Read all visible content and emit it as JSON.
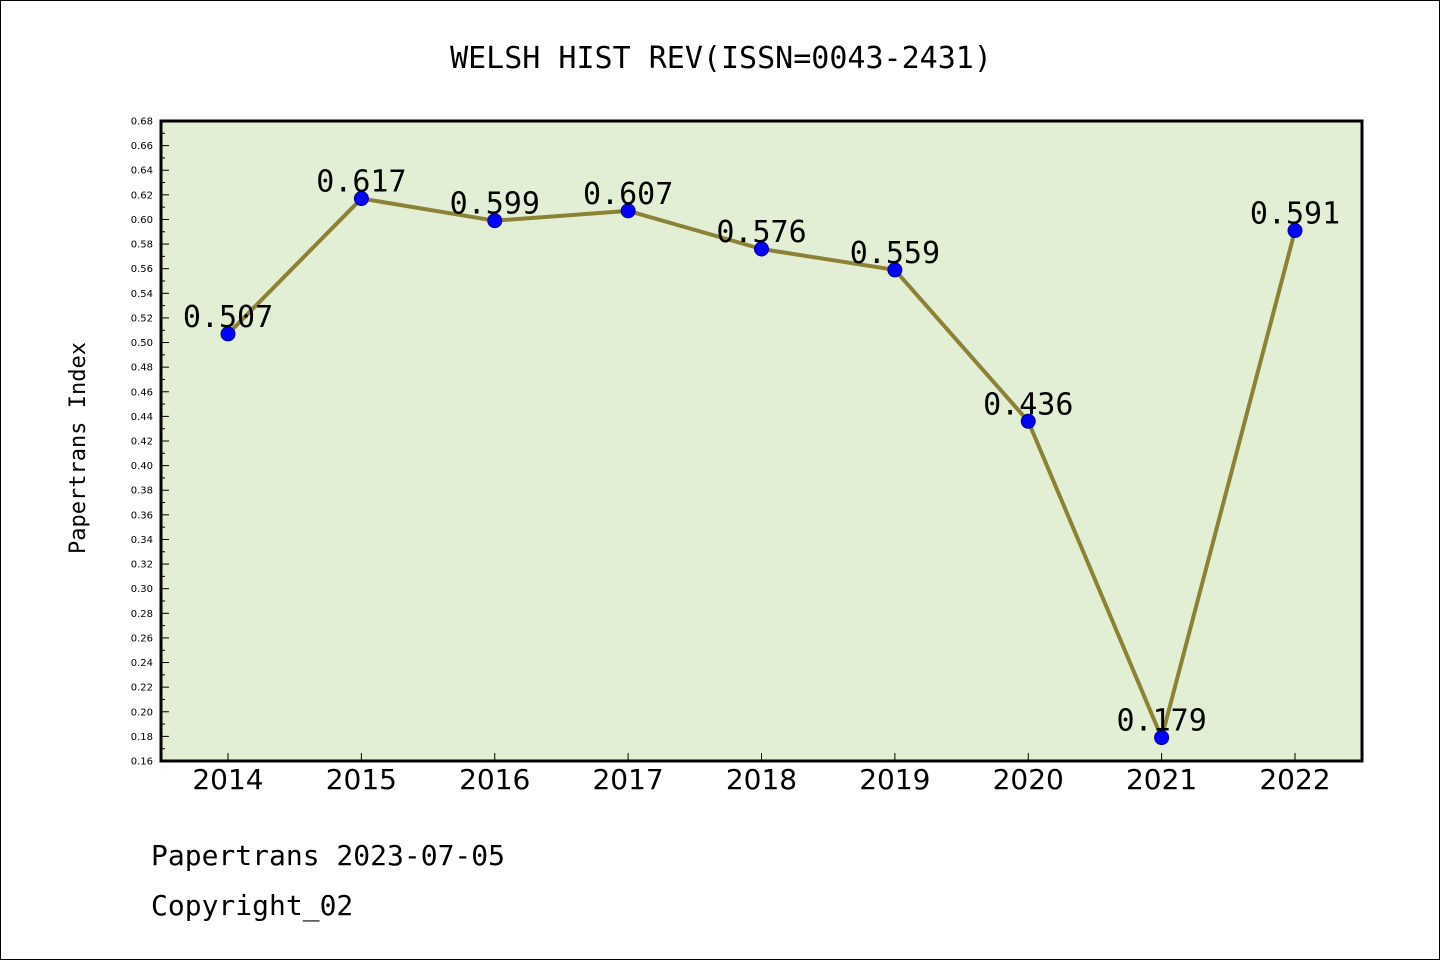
{
  "chart_data": {
    "type": "line",
    "title": "WELSH HIST REV(ISSN=0043-2431)",
    "xlabel": "",
    "ylabel": "Papertrans Index",
    "categories": [
      "2014",
      "2015",
      "2016",
      "2017",
      "2018",
      "2019",
      "2020",
      "2021",
      "2022"
    ],
    "series": [
      {
        "values": [
          0.507,
          0.617,
          0.599,
          0.607,
          0.576,
          0.559,
          0.436,
          0.179,
          0.591
        ],
        "data_labels": [
          "0.507",
          "0.617",
          "0.599",
          "0.607",
          "0.576",
          "0.559",
          "0.436",
          "0.179",
          "0.591"
        ]
      }
    ],
    "ylim": [
      0.16,
      0.68
    ],
    "yticks": [
      "0.16",
      "0.18",
      "0.20",
      "0.22",
      "0.24",
      "0.26",
      "0.28",
      "0.30",
      "0.32",
      "0.34",
      "0.36",
      "0.38",
      "0.40",
      "0.42",
      "0.44",
      "0.46",
      "0.48",
      "0.50",
      "0.52",
      "0.54",
      "0.56",
      "0.58",
      "0.60",
      "0.62",
      "0.64",
      "0.66",
      "0.68"
    ],
    "grid": false,
    "colors": {
      "plot_background": "#e2efd5",
      "line": "#8b8236",
      "marker": "#0000ff",
      "marker_edge": "#00008b",
      "frame": "#000000"
    }
  },
  "footer": {
    "line1": "Papertrans 2023-07-05",
    "line2": "Copyright_02"
  }
}
